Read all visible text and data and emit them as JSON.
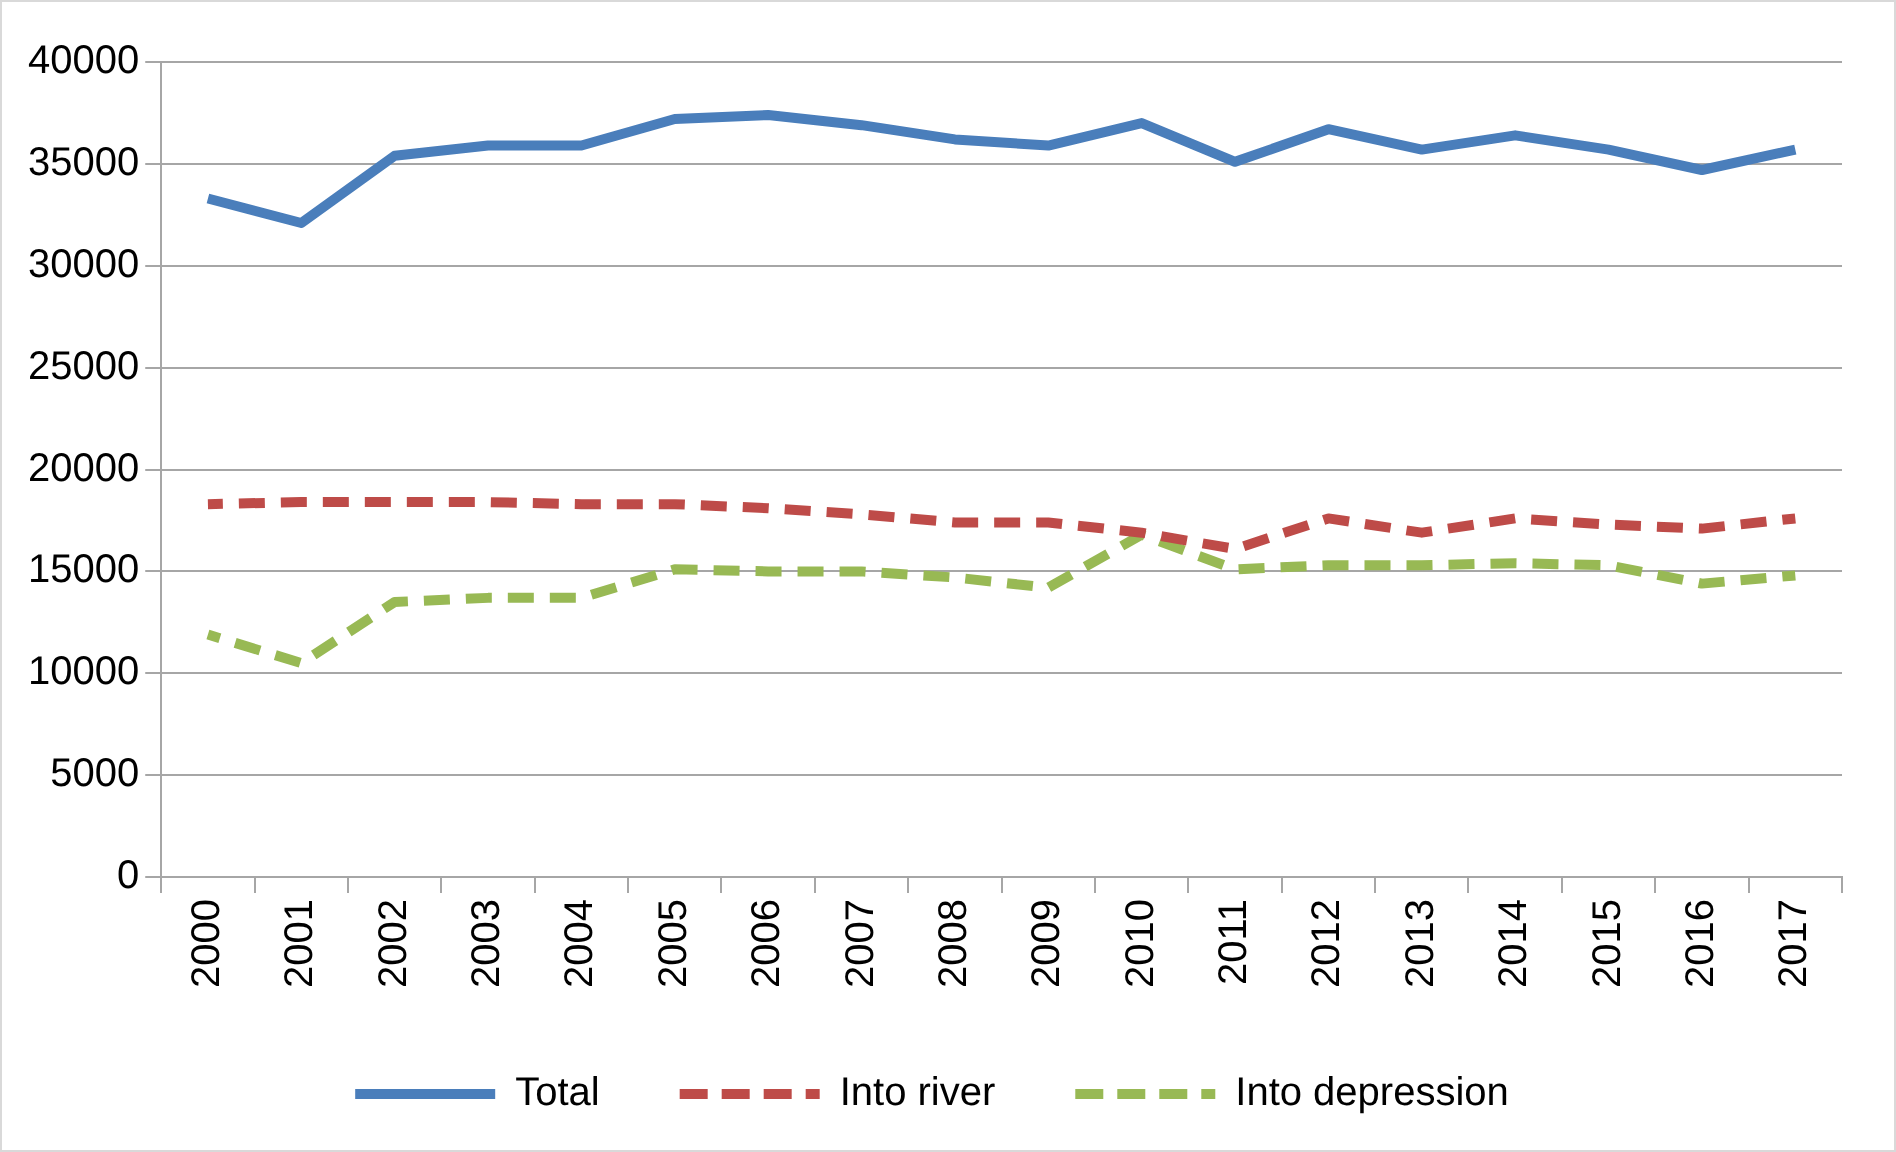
{
  "chart_data": {
    "type": "line",
    "categories": [
      "2000",
      "2001",
      "2002",
      "2003",
      "2004",
      "2005",
      "2006",
      "2007",
      "2008",
      "2009",
      "2010",
      "2011",
      "2012",
      "2013",
      "2014",
      "2015",
      "2016",
      "2017"
    ],
    "series": [
      {
        "name": "Total",
        "color": "#4a7ebb",
        "line_style": "solid",
        "values": [
          33300,
          32100,
          35400,
          35900,
          35900,
          37200,
          37400,
          36900,
          36200,
          35900,
          37000,
          35100,
          36700,
          35700,
          36400,
          35700,
          34700,
          35700
        ]
      },
      {
        "name": "Into river",
        "color": "#be4b48",
        "line_style": "dashed",
        "values": [
          18300,
          18400,
          18400,
          18400,
          18300,
          18300,
          18100,
          17800,
          17400,
          17400,
          16900,
          16100,
          17600,
          16900,
          17600,
          17300,
          17100,
          17600
        ]
      },
      {
        "name": "Into depression",
        "color": "#98b954",
        "line_style": "dashed",
        "values": [
          11900,
          10500,
          13500,
          13700,
          13700,
          15100,
          15000,
          15000,
          14700,
          14200,
          16800,
          15100,
          15300,
          15300,
          15400,
          15300,
          14400,
          14800
        ]
      }
    ],
    "ylim": [
      0,
      40000
    ],
    "yticks": [
      0,
      5000,
      10000,
      15000,
      20000,
      25000,
      30000,
      35000,
      40000
    ],
    "grid": "y",
    "legend": "bottom",
    "marker": "none"
  }
}
